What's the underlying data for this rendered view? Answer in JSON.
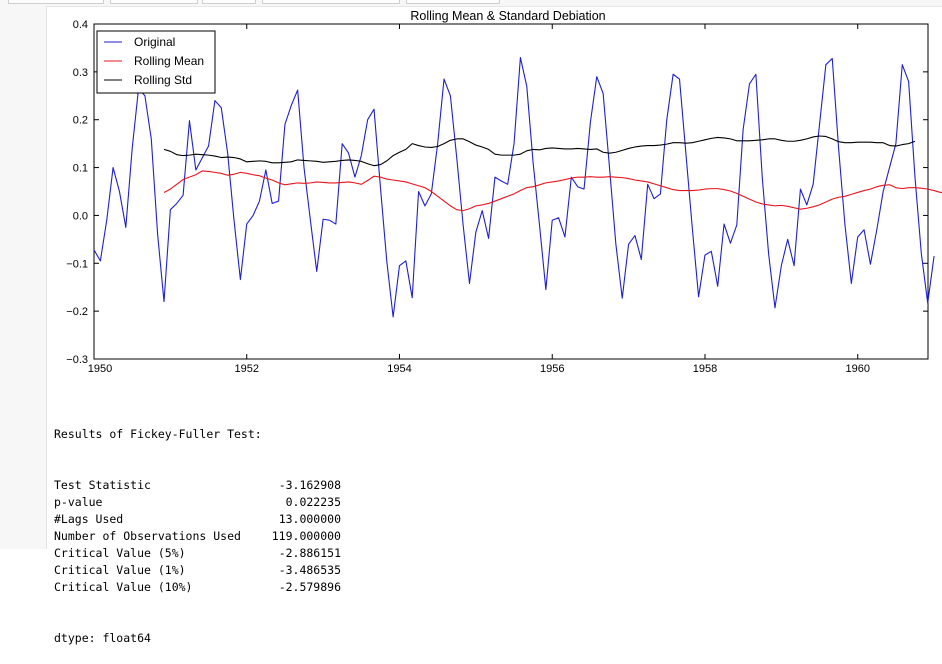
{
  "tabs": [
    "",
    "",
    "",
    "",
    ""
  ],
  "chart_data": {
    "type": "line",
    "title": "Rolling Mean & Standard Debiation",
    "xlabel": "",
    "ylabel": "",
    "xlim": [
      1950.0,
      1960.92
    ],
    "ylim": [
      -0.3,
      0.4
    ],
    "xticks": [
      "1950",
      "1952",
      "1954",
      "1956",
      "1958",
      "1960"
    ],
    "xtick_values": [
      1950,
      1952,
      1954,
      1956,
      1958,
      1960
    ],
    "yticks": [
      "−0.3",
      "−0.2",
      "−0.1",
      "0.0",
      "0.1",
      "0.2",
      "0.3",
      "0.4"
    ],
    "ytick_values": [
      -0.3,
      -0.2,
      -0.1,
      0.0,
      0.1,
      0.2,
      0.3,
      0.4
    ],
    "legend_position": "top-left",
    "grid": false,
    "x_start": 1950.0,
    "x_step": 0.08333,
    "series": [
      {
        "name": "Original",
        "color": "#1f1fcf",
        "values": [
          -0.072,
          -0.095,
          -0.01,
          0.1,
          0.05,
          -0.025,
          0.14,
          0.265,
          0.25,
          0.16,
          -0.04,
          -0.18,
          0.012,
          0.025,
          0.042,
          0.198,
          0.095,
          0.12,
          0.145,
          0.24,
          0.225,
          0.13,
          -0.01,
          -0.134,
          -0.018,
          0.0,
          0.03,
          0.095,
          0.025,
          0.03,
          0.19,
          0.23,
          0.262,
          0.1,
          -0.01,
          -0.117,
          -0.008,
          -0.01,
          -0.018,
          0.15,
          0.13,
          0.08,
          0.125,
          0.2,
          0.222,
          0.06,
          -0.095,
          -0.212,
          -0.105,
          -0.095,
          -0.172,
          0.05,
          0.02,
          0.045,
          0.15,
          0.285,
          0.25,
          0.12,
          -0.02,
          -0.142,
          -0.035,
          0.01,
          -0.048,
          0.08,
          0.072,
          0.065,
          0.15,
          0.33,
          0.27,
          0.11,
          -0.02,
          -0.155,
          -0.01,
          -0.005,
          -0.045,
          0.08,
          0.06,
          0.055,
          0.195,
          0.29,
          0.255,
          0.1,
          -0.06,
          -0.173,
          -0.06,
          -0.042,
          -0.092,
          0.065,
          0.035,
          0.045,
          0.2,
          0.295,
          0.285,
          0.13,
          -0.025,
          -0.17,
          -0.083,
          -0.075,
          -0.148,
          -0.018,
          -0.058,
          -0.02,
          0.18,
          0.275,
          0.295,
          0.08,
          -0.08,
          -0.193,
          -0.105,
          -0.05,
          -0.105,
          0.055,
          0.022,
          0.065,
          0.19,
          0.315,
          0.328,
          0.14,
          -0.02,
          -0.142,
          -0.045,
          -0.03,
          -0.102,
          -0.03,
          0.05,
          0.1,
          0.15,
          0.315,
          0.28,
          0.08,
          -0.08,
          -0.183,
          -0.085
        ]
      },
      {
        "name": "Rolling Mean",
        "color": "#e8141d",
        "start_index": 11,
        "values": [
          0.048,
          0.055,
          0.065,
          0.075,
          0.08,
          0.085,
          0.093,
          0.092,
          0.09,
          0.088,
          0.084,
          0.086,
          0.09,
          0.088,
          0.085,
          0.083,
          0.078,
          0.074,
          0.068,
          0.064,
          0.066,
          0.068,
          0.067,
          0.068,
          0.07,
          0.069,
          0.068,
          0.068,
          0.069,
          0.07,
          0.068,
          0.065,
          0.073,
          0.082,
          0.08,
          0.076,
          0.074,
          0.072,
          0.07,
          0.066,
          0.062,
          0.058,
          0.05,
          0.04,
          0.03,
          0.02,
          0.012,
          0.01,
          0.014,
          0.02,
          0.022,
          0.025,
          0.03,
          0.035,
          0.04,
          0.045,
          0.052,
          0.058,
          0.06,
          0.064,
          0.068,
          0.07,
          0.072,
          0.075,
          0.078,
          0.08,
          0.08,
          0.081,
          0.08,
          0.08,
          0.081,
          0.08,
          0.079,
          0.077,
          0.074,
          0.072,
          0.07,
          0.066,
          0.062,
          0.058,
          0.054,
          0.052,
          0.052,
          0.052,
          0.053,
          0.055,
          0.056,
          0.056,
          0.054,
          0.051,
          0.046,
          0.04,
          0.034,
          0.028,
          0.024,
          0.022,
          0.02,
          0.021,
          0.019,
          0.016,
          0.013,
          0.015,
          0.018,
          0.022,
          0.028,
          0.034,
          0.038,
          0.04,
          0.044,
          0.048,
          0.052,
          0.055,
          0.06,
          0.063,
          0.064,
          0.058,
          0.056,
          0.058,
          0.058,
          0.057,
          0.055,
          0.052,
          0.048,
          0.045
        ]
      },
      {
        "name": "Rolling Std",
        "color": "#000000",
        "start_index": 11,
        "values": [
          0.138,
          0.134,
          0.127,
          0.125,
          0.126,
          0.128,
          0.127,
          0.126,
          0.124,
          0.121,
          0.122,
          0.121,
          0.118,
          0.112,
          0.113,
          0.114,
          0.113,
          0.11,
          0.11,
          0.111,
          0.112,
          0.116,
          0.115,
          0.114,
          0.113,
          0.111,
          0.112,
          0.113,
          0.115,
          0.116,
          0.115,
          0.113,
          0.108,
          0.104,
          0.106,
          0.114,
          0.125,
          0.132,
          0.138,
          0.15,
          0.146,
          0.143,
          0.142,
          0.144,
          0.15,
          0.157,
          0.16,
          0.16,
          0.154,
          0.147,
          0.143,
          0.138,
          0.128,
          0.126,
          0.126,
          0.126,
          0.128,
          0.135,
          0.138,
          0.137,
          0.14,
          0.141,
          0.14,
          0.139,
          0.139,
          0.14,
          0.139,
          0.138,
          0.139,
          0.132,
          0.13,
          0.132,
          0.136,
          0.14,
          0.143,
          0.145,
          0.146,
          0.146,
          0.147,
          0.149,
          0.152,
          0.152,
          0.151,
          0.152,
          0.155,
          0.158,
          0.161,
          0.163,
          0.162,
          0.16,
          0.156,
          0.156,
          0.156,
          0.157,
          0.158,
          0.16,
          0.16,
          0.157,
          0.155,
          0.155,
          0.157,
          0.16,
          0.164,
          0.166,
          0.165,
          0.16,
          0.154,
          0.152,
          0.152,
          0.153,
          0.153,
          0.153,
          0.152,
          0.152,
          0.146,
          0.145,
          0.148,
          0.15,
          0.155
        ]
      }
    ]
  },
  "output": {
    "header": "Results of Fickey-Fuller Test:",
    "rows": [
      {
        "name": "Test Statistic",
        "value": "-3.162908"
      },
      {
        "name": "p-value",
        "value": "0.022235"
      },
      {
        "name": "#Lags Used",
        "value": "13.000000"
      },
      {
        "name": "Number of Observations Used",
        "value": "119.000000"
      },
      {
        "name": "Critical Value (5%)",
        "value": "-2.886151"
      },
      {
        "name": "Critical Value (1%)",
        "value": "-3.486535"
      },
      {
        "name": "Critical Value (10%)",
        "value": "-2.579896"
      }
    ],
    "dtype": "dtype: float64"
  }
}
